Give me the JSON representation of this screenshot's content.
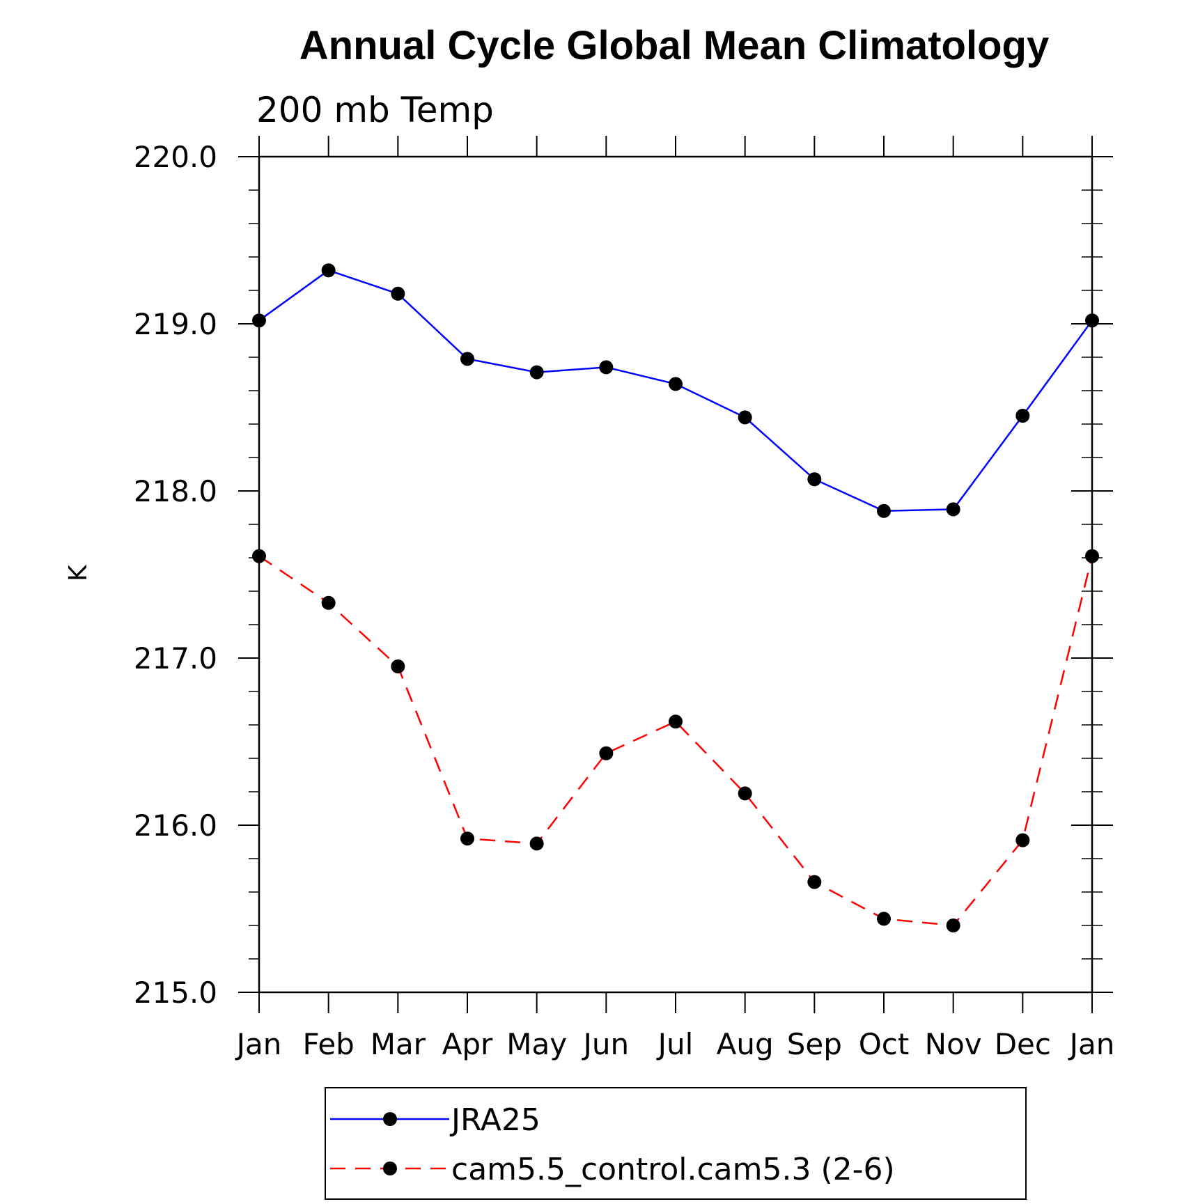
{
  "chart_data": {
    "type": "line",
    "title": "Annual Cycle Global Mean Climatology",
    "subtitle": "200 mb Temp",
    "xlabel": "",
    "ylabel": "K",
    "categories": [
      "Jan",
      "Feb",
      "Mar",
      "Apr",
      "May",
      "Jun",
      "Jul",
      "Aug",
      "Sep",
      "Oct",
      "Nov",
      "Dec",
      "Jan"
    ],
    "ylim": [
      215.0,
      220.0
    ],
    "yticks": [
      "215.0",
      "216.0",
      "217.0",
      "218.0",
      "219.0",
      "220.0"
    ],
    "grid": false,
    "legend_position": "bottom-center",
    "series": [
      {
        "name": "JRA25",
        "color": "#0000ff",
        "line_style": "solid",
        "marker": "filled-circle",
        "values": [
          219.02,
          219.32,
          219.18,
          218.79,
          218.71,
          218.74,
          218.64,
          218.44,
          218.07,
          217.88,
          217.89,
          218.45,
          219.02
        ]
      },
      {
        "name": "cam5.5_control.cam5.3 (2-6)",
        "color": "#ff0000",
        "line_style": "dashed",
        "marker": "filled-circle",
        "values": [
          217.61,
          217.33,
          216.95,
          215.92,
          215.89,
          216.43,
          216.62,
          216.19,
          215.66,
          215.44,
          215.4,
          215.91,
          217.61
        ]
      }
    ]
  }
}
